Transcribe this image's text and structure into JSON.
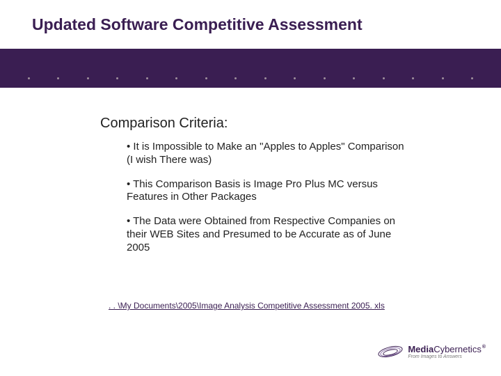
{
  "colors": {
    "title": "#3a1e52",
    "band": "#3a1e52",
    "dot": "#f0ecd8",
    "subtitle": "#222222",
    "bullet": "#222222",
    "link": "#3a1e52",
    "logo_primary": "#3a1e52",
    "logo_accent": "#8a6fa8",
    "logo_tag": "#7a7a7a"
  },
  "typography": {
    "title_size": 23,
    "subtitle_size": 20,
    "bullet_size": 15,
    "link_size": 12,
    "logo_name_size": 13,
    "logo_tag_size": 7
  },
  "title": "Updated Software Competitive Assessment",
  "subtitle": "Comparison Criteria:",
  "bullets": [
    "• It is Impossible to Make an \"Apples to Apples\" Comparison (I wish There was)",
    "• This Comparison Basis is Image Pro Plus MC versus Features in Other Packages",
    "• The Data were Obtained from Respective Companies on their WEB Sites and Presumed to be Accurate as of June 2005"
  ],
  "link": ". . \\My Documents\\2005\\Image Analysis Competitive Assessment 2005. xls",
  "logo": {
    "name_bold": "Media",
    "name_light": "Cybernetics",
    "reg": "®",
    "tagline": "From Images to Answers"
  },
  "decor": {
    "dot_count": 16
  }
}
